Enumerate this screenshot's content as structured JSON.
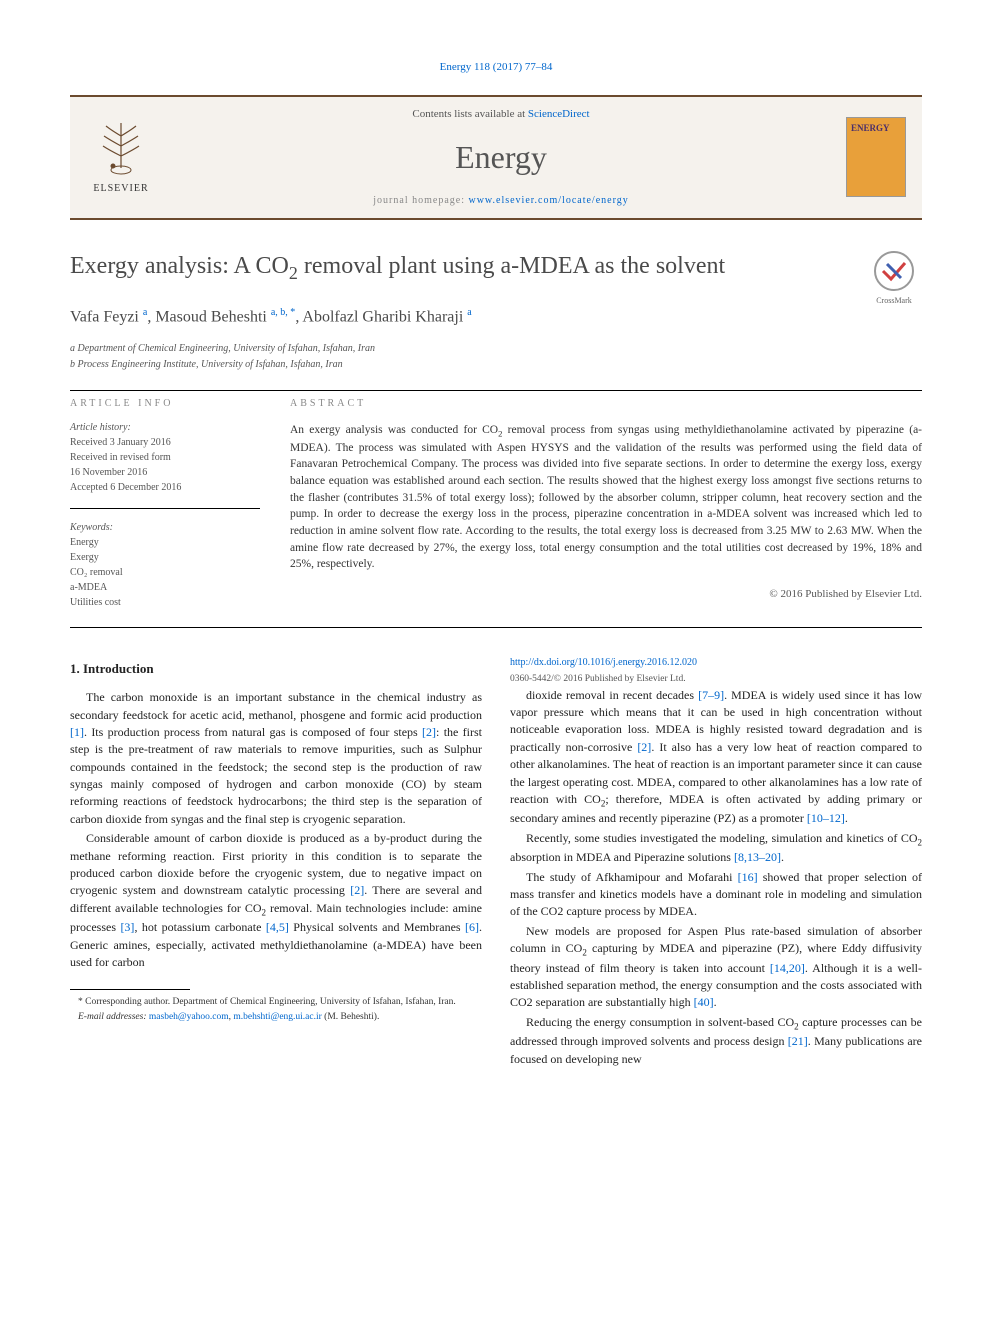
{
  "header": {
    "citation": "Energy 118 (2017) 77–84"
  },
  "masthead": {
    "contents_prefix": "Contents lists available at ",
    "contents_link": "ScienceDirect",
    "journal_name": "Energy",
    "homepage_label": "journal homepage: ",
    "homepage_url": "www.elsevier.com/locate/energy",
    "publisher": "ELSEVIER",
    "cover_title": "ENERGY"
  },
  "article": {
    "title_html": "Exergy analysis: A CO<sub>2</sub> removal plant using a-MDEA as the solvent",
    "crossmark": "CrossMark",
    "authors_html": "Vafa Feyzi <sup>a</sup>, Masoud Beheshti <sup>a, b, *</sup>, Abolfazl Gharibi Kharaji <sup>a</sup>",
    "affiliations": [
      "a Department of Chemical Engineering, University of Isfahan, Isfahan, Iran",
      "b Process Engineering Institute, University of Isfahan, Isfahan, Iran"
    ]
  },
  "info": {
    "section_label": "ARTICLE INFO",
    "history_label": "Article history:",
    "history": [
      "Received 3 January 2016",
      "Received in revised form",
      "16 November 2016",
      "Accepted 6 December 2016"
    ],
    "keywords_label": "Keywords:",
    "keywords": [
      "Energy",
      "Exergy",
      "CO₂ removal",
      "a-MDEA",
      "Utilities cost"
    ]
  },
  "abstract": {
    "section_label": "ABSTRACT",
    "text_html": "An exergy analysis was conducted for CO<sub>2</sub> removal process from syngas using methyldiethanolamine activated by piperazine (a-MDEA). The process was simulated with Aspen HYSYS and the validation of the results was performed using the field data of Fanavaran Petrochemical Company. The process was divided into five separate sections. In order to determine the exergy loss, exergy balance equation was established around each section. The results showed that the highest exergy loss amongst five sections returns to the flasher (contributes 31.5% of total exergy loss); followed by the absorber column, stripper column, heat recovery section and the pump. In order to decrease the exergy loss in the process, piperazine concentration in a-MDEA solvent was increased which led to reduction in amine solvent flow rate. According to the results, the total exergy loss is decreased from 3.25 MW to 2.63 MW. When the amine flow rate decreased by 27%, the exergy loss, total energy consumption and the total utilities cost decreased by 19%, 18% and 25%, respectively.",
    "copyright": "© 2016 Published by Elsevier Ltd."
  },
  "body": {
    "heading": "1. Introduction",
    "paragraphs_html": [
      "The carbon monoxide is an important substance in the chemical industry as secondary feedstock for acetic acid, methanol, phosgene and formic acid production <a href='#'>[1]</a>. Its production process from natural gas is composed of four steps <a href='#'>[2]</a>: the first step is the pre-treatment of raw materials to remove impurities, such as Sulphur compounds contained in the feedstock; the second step is the production of raw syngas mainly composed of hydrogen and carbon monoxide (CO) by steam reforming reactions of feedstock hydrocarbons; the third step is the separation of carbon dioxide from syngas and the final step is cryogenic separation.",
      "Considerable amount of carbon dioxide is produced as a by-product during the methane reforming reaction. First priority in this condition is to separate the produced carbon dioxide before the cryogenic system, due to negative impact on cryogenic system and downstream catalytic processing <a href='#'>[2]</a>. There are several and different available technologies for CO<sub>2</sub> removal. Main technologies include: amine processes <a href='#'>[3]</a>, hot potassium carbonate <a href='#'>[4,5]</a> Physical solvents and Membranes <a href='#'>[6]</a>. Generic amines, especially, activated methyldiethanolamine (a-MDEA) have been used for carbon",
      "dioxide removal in recent decades <a href='#'>[7–9]</a>. MDEA is widely used since it has low vapor pressure which means that it can be used in high concentration without noticeable evaporation loss. MDEA is highly resisted toward degradation and is practically non-corrosive <a href='#'>[2]</a>. It also has a very low heat of reaction compared to other alkanolamines. The heat of reaction is an important parameter since it can cause the largest operating cost. MDEA, compared to other alkanolamines has a low rate of reaction with CO<sub>2</sub>; therefore, MDEA is often activated by adding primary or secondary amines and recently piperazine (PZ) as a promoter <a href='#'>[10–12]</a>.",
      "Recently, some studies investigated the modeling, simulation and kinetics of CO<sub>2</sub> absorption in MDEA and Piperazine solutions <a href='#'>[8,13–20]</a>.",
      "The study of Afkhamipour and Mofarahi <a href='#'>[16]</a> showed that proper selection of mass transfer and kinetics models have a dominant role in modeling and simulation of the CO2 capture process by MDEA.",
      "New models are proposed for Aspen Plus rate-based simulation of absorber column in CO<sub>2</sub> capturing by MDEA and piperazine (PZ), where Eddy diffusivity theory instead of film theory is taken into account <a href='#'>[14,20]</a>. Although it is a well-established separation method, the energy consumption and the costs associated with CO2 separation are substantially high <a href='#'>[40]</a>.",
      "Reducing the energy consumption in solvent-based CO<sub>2</sub> capture processes can be addressed through improved solvents and process design <a href='#'>[21]</a>. Many publications are focused on developing new"
    ]
  },
  "footnotes": {
    "corresponding": "* Corresponding author. Department of Chemical Engineering, University of Isfahan, Isfahan, Iran.",
    "email_label": "E-mail addresses:",
    "emails_html": "<a href='#'>masbeh@yahoo.com</a>, <a href='#'>m.behshti@eng.ui.ac.ir</a> (M. Beheshti)."
  },
  "doi": {
    "url": "http://dx.doi.org/10.1016/j.energy.2016.12.020",
    "issn_copyright": "0360-5442/© 2016 Published by Elsevier Ltd."
  },
  "colors": {
    "link": "#0066cc",
    "rule": "#6b4a2e",
    "masthead_bg": "#f5f2ed",
    "cover_bg": "#e8a03a",
    "text": "#222222",
    "muted": "#555555"
  },
  "typography": {
    "title_fontsize": 24,
    "author_fontsize": 16,
    "journal_fontsize": 32,
    "body_fontsize": 12,
    "abstract_fontsize": 11.5,
    "info_fontsize": 10,
    "footnote_fontsize": 9.5
  }
}
